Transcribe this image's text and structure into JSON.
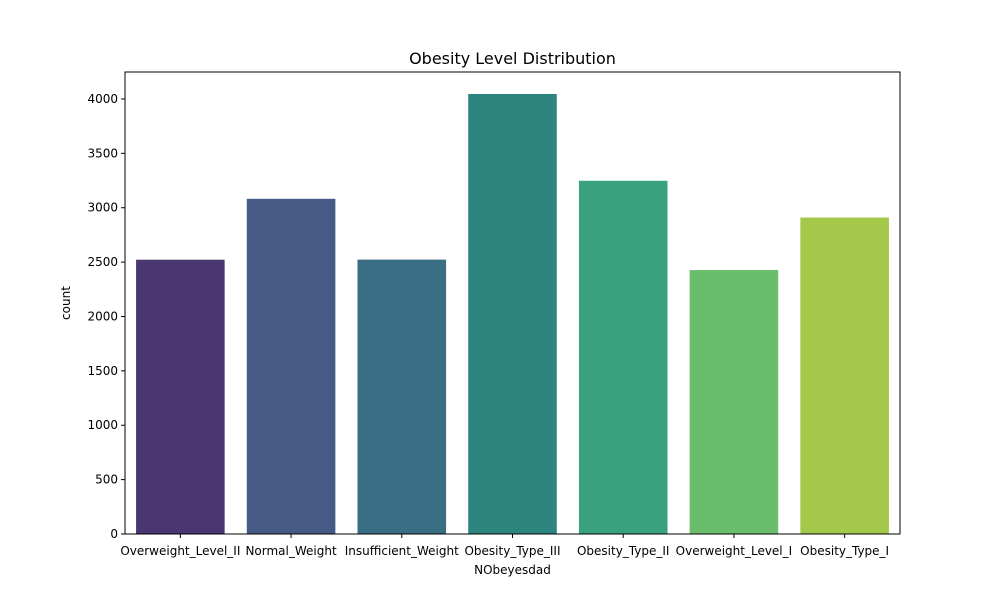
{
  "chart_data": {
    "type": "bar",
    "title": "Obesity Level Distribution",
    "xlabel": "NObeyesdad",
    "ylabel": "count",
    "categories": [
      "Overweight_Level_II",
      "Normal_Weight",
      "Insufficient_Weight",
      "Obesity_Type_III",
      "Obesity_Type_II",
      "Overweight_Level_I",
      "Obesity_Type_I"
    ],
    "values": [
      2522,
      3082,
      2523,
      4046,
      3248,
      2427,
      2910
    ],
    "colors": [
      "#4a3670",
      "#455b85",
      "#3a6e84",
      "#2e8580",
      "#3aa17e",
      "#6abd6b",
      "#a3c84a"
    ],
    "ylim": [
      0,
      4248
    ],
    "yticks": [
      0,
      500,
      1000,
      1500,
      2000,
      2500,
      3000,
      3500,
      4000
    ],
    "grid": false,
    "legend": "none"
  }
}
